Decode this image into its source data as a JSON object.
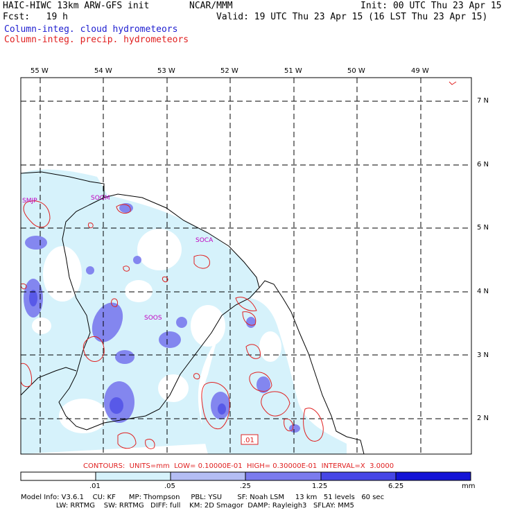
{
  "header": {
    "model_title": "HAIC-HIWC 13km ARW-GFS init",
    "org": "NCAR/MMM",
    "init": "Init: 00 UTC Thu 23 Apr 15",
    "fcst": "Fcst:   19 h",
    "valid": "Valid: 19 UTC Thu 23 Apr 15 (16 LST Thu 23 Apr 15)",
    "field_cloud": "Column-integ. cloud hydrometeors",
    "field_precip": "Column-integ. precip. hydrometeors"
  },
  "map": {
    "lon_labels": [
      "55 W",
      "54 W",
      "53 W",
      "52 W",
      "51 W",
      "50 W",
      "49 W"
    ],
    "lat_labels": [
      "7 N",
      "6 N",
      "5 N",
      "4 N",
      "3 N",
      "2 N"
    ],
    "stations": [
      "SMJP",
      "SOGM",
      "SOCA",
      "SOOS"
    ],
    "contour_label": ".01"
  },
  "contours_line": "CONTOURS:  UNITS=mm  LOW= 0.10000E-01  HIGH= 0.30000E-01  INTERVAL=X  3.0000",
  "colorbar": {
    "labels": [
      ".01",
      ".05",
      ".25",
      "1.25",
      "6.25"
    ],
    "units": "mm",
    "colors": [
      "#ffffff",
      "#d6f2fb",
      "#b4bdf4",
      "#7b7bee",
      "#4646e6",
      "#1414d6"
    ]
  },
  "footer": {
    "line1": "Model Info: V3.6.1    CU: KF      MP: Thompson     PBL: YSU       SF: Noah LSM     13 km   51 levels   60 sec",
    "line2": "                LW: RRTMG    SW: RRTMG   DIFF: full    KM: 2D Smagor  DAMP: Rayleigh3   SFLAY: MM5"
  }
}
